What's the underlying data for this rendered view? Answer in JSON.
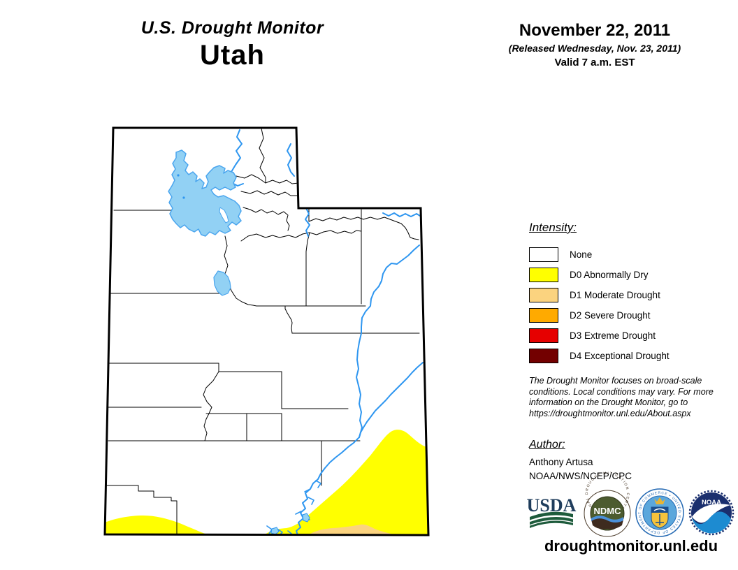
{
  "header": {
    "title": "U.S. Drought Monitor",
    "state": "Utah",
    "date": "November 22, 2011",
    "released": "(Released Wednesday, Nov. 23, 2011)",
    "valid": "Valid 7 a.m. EST"
  },
  "legend": {
    "heading": "Intensity:",
    "items": [
      {
        "code": "none",
        "label": "None",
        "color": "#FFFFFF"
      },
      {
        "code": "d0",
        "label": "D0 Abnormally Dry",
        "color": "#FFFF00"
      },
      {
        "code": "d1",
        "label": "D1 Moderate Drought",
        "color": "#FBD37F"
      },
      {
        "code": "d2",
        "label": "D2 Severe Drought",
        "color": "#FFAA00"
      },
      {
        "code": "d3",
        "label": "D3 Extreme Drought",
        "color": "#E60000"
      },
      {
        "code": "d4",
        "label": "D4 Exceptional Drought",
        "color": "#730000"
      }
    ]
  },
  "map": {
    "state": "Utah",
    "lake_fill_color": "#92D1F4",
    "water_line_color": "#2E96F0",
    "drought_areas_shown": [
      "D0 southeast",
      "D0 southwest",
      "D1 south-central strip"
    ]
  },
  "disclaimer": "The Drought Monitor focuses on broad-scale conditions. Local conditions may vary. For more information on the Drought Monitor, go to https://droughtmonitor.unl.edu/About.aspx",
  "author": {
    "heading": "Author:",
    "name": "Anthony Artusa",
    "affiliation": "NOAA/NWS/NCEP/CPC"
  },
  "logos": {
    "usda": "USDA",
    "ndmc": "NDMC",
    "ndmc_ring": "NATIONAL DROUGHT MITIGATION CENTER",
    "doc_ring": "DEPARTMENT OF COMMERCE • UNITED STATES OF AMERICA",
    "noaa": "NOAA"
  },
  "footer": {
    "url": "droughtmonitor.unl.edu"
  }
}
